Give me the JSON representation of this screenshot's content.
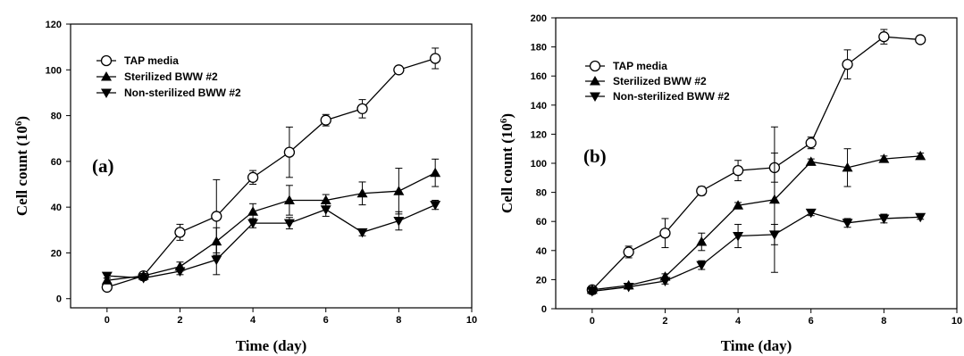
{
  "chart_data": [
    {
      "type": "line",
      "panel_label": "(a)",
      "xlabel": "Time (day)",
      "ylabel": "Cell count (10",
      "ylabel_sup": "6",
      "ylabel_end": ")",
      "xlim": [
        -1,
        10
      ],
      "ylim": [
        -4,
        120
      ],
      "xticks": [
        0,
        2,
        4,
        6,
        8,
        10
      ],
      "yticks": [
        0,
        20,
        40,
        60,
        80,
        100,
        120
      ],
      "grid": false,
      "legend_position": "top-left",
      "series": [
        {
          "name": "TAP media",
          "marker": "open-circle",
          "x": [
            0,
            1,
            2,
            3,
            4,
            5,
            6,
            7,
            8,
            9
          ],
          "y": [
            5,
            10,
            29,
            36,
            53,
            64,
            78,
            83,
            100,
            105
          ],
          "err": [
            1.5,
            1.5,
            3.5,
            16,
            3,
            11,
            2.5,
            4,
            1.5,
            4.5
          ]
        },
        {
          "name": "Sterilized BWW #2",
          "marker": "filled-triangle-up",
          "x": [
            0,
            1,
            2,
            3,
            4,
            5,
            6,
            7,
            8,
            9
          ],
          "y": [
            8,
            10,
            14,
            25,
            38,
            43,
            43,
            46,
            47,
            55
          ],
          "err": [
            1,
            1,
            2,
            6,
            3.5,
            6.5,
            2.5,
            5,
            10,
            6
          ]
        },
        {
          "name": "Non-sterilized BWW #2",
          "marker": "filled-triangle-down",
          "x": [
            0,
            1,
            2,
            3,
            4,
            5,
            6,
            7,
            8,
            9
          ],
          "y": [
            10,
            9,
            12,
            17,
            33,
            33,
            39,
            29,
            34,
            41
          ],
          "err": [
            1,
            1,
            1.5,
            6.5,
            2,
            2.5,
            3,
            1.5,
            4,
            2
          ]
        }
      ]
    },
    {
      "type": "line",
      "panel_label": "(b)",
      "xlabel": "Time (day)",
      "ylabel": "Cell count (10",
      "ylabel_sup": "6",
      "ylabel_end": ")",
      "xlim": [
        -1,
        10
      ],
      "ylim": [
        0,
        200
      ],
      "xticks": [
        0,
        2,
        4,
        6,
        8,
        10
      ],
      "yticks": [
        0,
        20,
        40,
        60,
        80,
        100,
        120,
        140,
        160,
        180,
        200
      ],
      "grid": false,
      "legend_position": "top-left",
      "series": [
        {
          "name": "TAP media",
          "marker": "open-circle",
          "x": [
            0,
            1,
            2,
            3,
            4,
            5,
            6,
            7,
            8,
            9
          ],
          "y": [
            13,
            39,
            52,
            81,
            95,
            97,
            114,
            168,
            187,
            185
          ],
          "err": [
            2,
            4,
            10,
            3,
            7,
            10,
            4,
            10,
            5,
            2
          ]
        },
        {
          "name": "Sterilized BWW #2",
          "marker": "filled-triangle-up",
          "x": [
            0,
            1,
            2,
            3,
            4,
            5,
            6,
            7,
            8,
            9
          ],
          "y": [
            13,
            16,
            22,
            46,
            71,
            75,
            101,
            97,
            103,
            105
          ],
          "err": [
            2,
            1.5,
            2,
            6,
            2,
            50,
            2,
            13,
            2,
            2
          ]
        },
        {
          "name": "Non-sterilized BWW #2",
          "marker": "filled-triangle-down",
          "x": [
            0,
            1,
            2,
            3,
            4,
            5,
            6,
            7,
            8,
            9
          ],
          "y": [
            12,
            15,
            19,
            30,
            50,
            51,
            66,
            59,
            62,
            63
          ],
          "err": [
            2,
            1.5,
            2,
            3,
            8,
            7,
            2,
            3,
            3,
            1.5
          ]
        }
      ]
    }
  ]
}
